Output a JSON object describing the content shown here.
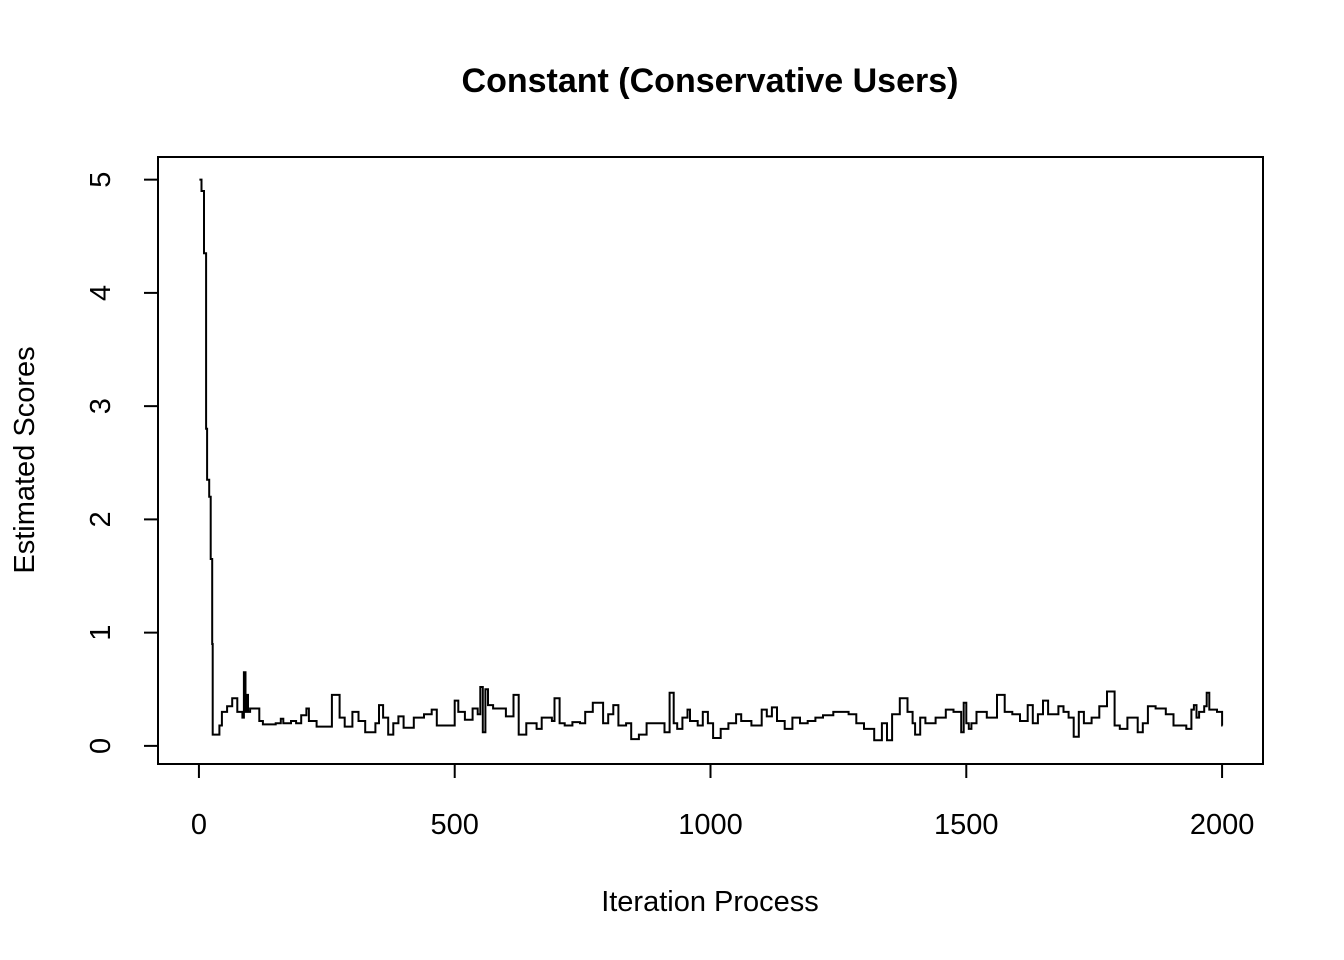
{
  "chart_data": {
    "type": "line",
    "title": "Constant (Conservative Users)",
    "xlabel": "Iteration Process",
    "ylabel": "Estimated Scores",
    "xlim": [
      -80,
      2080
    ],
    "ylim": [
      -0.16,
      5.2
    ],
    "x_ticks": [
      0,
      500,
      1000,
      1500,
      2000
    ],
    "y_ticks": [
      0,
      1,
      2,
      3,
      4,
      5
    ],
    "x_tick_labels": [
      "0",
      "500",
      "1000",
      "1500",
      "2000"
    ],
    "y_tick_labels": [
      "0",
      "1",
      "2",
      "3",
      "4",
      "5"
    ],
    "grid": false,
    "legend": "none",
    "line_color": "#000000",
    "series": [
      {
        "step": true,
        "points": [
          [
            1,
            5.0
          ],
          [
            5,
            4.9
          ],
          [
            10,
            4.35
          ],
          [
            14,
            2.8
          ],
          [
            16,
            2.35
          ],
          [
            20,
            2.2
          ],
          [
            23,
            1.65
          ],
          [
            26,
            0.9
          ],
          [
            27,
            0.1
          ],
          [
            40,
            0.18
          ],
          [
            45,
            0.3
          ],
          [
            55,
            0.35
          ],
          [
            65,
            0.42
          ],
          [
            75,
            0.3
          ],
          [
            85,
            0.25
          ],
          [
            88,
            0.65
          ],
          [
            91,
            0.3
          ],
          [
            93,
            0.45
          ],
          [
            96,
            0.3
          ],
          [
            100,
            0.33
          ],
          [
            118,
            0.22
          ],
          [
            125,
            0.19
          ],
          [
            150,
            0.2
          ],
          [
            160,
            0.24
          ],
          [
            165,
            0.2
          ],
          [
            180,
            0.22
          ],
          [
            190,
            0.2
          ],
          [
            200,
            0.27
          ],
          [
            210,
            0.33
          ],
          [
            215,
            0.22
          ],
          [
            230,
            0.17
          ],
          [
            260,
            0.45
          ],
          [
            275,
            0.25
          ],
          [
            285,
            0.17
          ],
          [
            300,
            0.3
          ],
          [
            312,
            0.22
          ],
          [
            325,
            0.12
          ],
          [
            345,
            0.2
          ],
          [
            352,
            0.36
          ],
          [
            360,
            0.25
          ],
          [
            370,
            0.1
          ],
          [
            380,
            0.2
          ],
          [
            390,
            0.26
          ],
          [
            400,
            0.16
          ],
          [
            420,
            0.25
          ],
          [
            440,
            0.28
          ],
          [
            455,
            0.32
          ],
          [
            465,
            0.18
          ],
          [
            480,
            0.18
          ],
          [
            500,
            0.4
          ],
          [
            507,
            0.3
          ],
          [
            520,
            0.23
          ],
          [
            535,
            0.33
          ],
          [
            545,
            0.28
          ],
          [
            550,
            0.52
          ],
          [
            555,
            0.12
          ],
          [
            560,
            0.5
          ],
          [
            565,
            0.36
          ],
          [
            575,
            0.33
          ],
          [
            600,
            0.26
          ],
          [
            615,
            0.45
          ],
          [
            625,
            0.1
          ],
          [
            640,
            0.2
          ],
          [
            660,
            0.15
          ],
          [
            670,
            0.25
          ],
          [
            690,
            0.22
          ],
          [
            695,
            0.42
          ],
          [
            705,
            0.2
          ],
          [
            715,
            0.18
          ],
          [
            730,
            0.21
          ],
          [
            745,
            0.2
          ],
          [
            755,
            0.3
          ],
          [
            770,
            0.38
          ],
          [
            790,
            0.2
          ],
          [
            800,
            0.28
          ],
          [
            810,
            0.36
          ],
          [
            820,
            0.18
          ],
          [
            835,
            0.2
          ],
          [
            845,
            0.06
          ],
          [
            860,
            0.1
          ],
          [
            875,
            0.2
          ],
          [
            910,
            0.12
          ],
          [
            920,
            0.47
          ],
          [
            928,
            0.2
          ],
          [
            935,
            0.15
          ],
          [
            945,
            0.25
          ],
          [
            955,
            0.32
          ],
          [
            960,
            0.22
          ],
          [
            975,
            0.18
          ],
          [
            985,
            0.3
          ],
          [
            995,
            0.2
          ],
          [
            1005,
            0.07
          ],
          [
            1020,
            0.15
          ],
          [
            1035,
            0.2
          ],
          [
            1050,
            0.28
          ],
          [
            1060,
            0.22
          ],
          [
            1080,
            0.18
          ],
          [
            1100,
            0.32
          ],
          [
            1110,
            0.26
          ],
          [
            1120,
            0.34
          ],
          [
            1130,
            0.22
          ],
          [
            1145,
            0.15
          ],
          [
            1160,
            0.25
          ],
          [
            1175,
            0.2
          ],
          [
            1190,
            0.22
          ],
          [
            1205,
            0.25
          ],
          [
            1220,
            0.27
          ],
          [
            1240,
            0.3
          ],
          [
            1270,
            0.28
          ],
          [
            1285,
            0.2
          ],
          [
            1300,
            0.15
          ],
          [
            1320,
            0.05
          ],
          [
            1335,
            0.2
          ],
          [
            1345,
            0.05
          ],
          [
            1355,
            0.28
          ],
          [
            1370,
            0.42
          ],
          [
            1385,
            0.3
          ],
          [
            1395,
            0.2
          ],
          [
            1400,
            0.1
          ],
          [
            1410,
            0.25
          ],
          [
            1420,
            0.2
          ],
          [
            1440,
            0.25
          ],
          [
            1460,
            0.32
          ],
          [
            1475,
            0.3
          ],
          [
            1490,
            0.12
          ],
          [
            1495,
            0.38
          ],
          [
            1500,
            0.2
          ],
          [
            1505,
            0.15
          ],
          [
            1510,
            0.2
          ],
          [
            1520,
            0.3
          ],
          [
            1540,
            0.25
          ],
          [
            1560,
            0.45
          ],
          [
            1575,
            0.3
          ],
          [
            1590,
            0.28
          ],
          [
            1605,
            0.22
          ],
          [
            1620,
            0.36
          ],
          [
            1630,
            0.2
          ],
          [
            1640,
            0.28
          ],
          [
            1650,
            0.4
          ],
          [
            1660,
            0.28
          ],
          [
            1680,
            0.35
          ],
          [
            1690,
            0.3
          ],
          [
            1700,
            0.25
          ],
          [
            1710,
            0.08
          ],
          [
            1720,
            0.3
          ],
          [
            1730,
            0.2
          ],
          [
            1745,
            0.25
          ],
          [
            1760,
            0.35
          ],
          [
            1775,
            0.48
          ],
          [
            1790,
            0.18
          ],
          [
            1800,
            0.15
          ],
          [
            1815,
            0.25
          ],
          [
            1835,
            0.12
          ],
          [
            1845,
            0.2
          ],
          [
            1855,
            0.35
          ],
          [
            1870,
            0.33
          ],
          [
            1890,
            0.28
          ],
          [
            1905,
            0.18
          ],
          [
            1930,
            0.15
          ],
          [
            1940,
            0.32
          ],
          [
            1945,
            0.36
          ],
          [
            1950,
            0.25
          ],
          [
            1955,
            0.3
          ],
          [
            1965,
            0.35
          ],
          [
            1970,
            0.47
          ],
          [
            1975,
            0.32
          ],
          [
            1990,
            0.3
          ],
          [
            2000,
            0.18
          ]
        ]
      }
    ]
  }
}
